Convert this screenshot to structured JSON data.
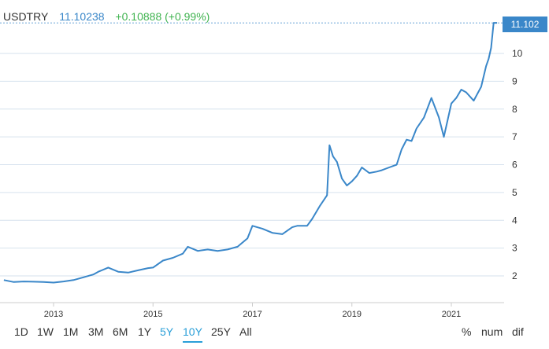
{
  "header": {
    "symbol": "USDTRY",
    "last": "11.10238",
    "change": "+0.10888 (+0.99%)"
  },
  "price_tag": "11.102",
  "range_buttons": {
    "left": [
      "1D",
      "1W",
      "1M",
      "3M",
      "6M",
      "1Y",
      "5Y",
      "10Y",
      "25Y",
      "All"
    ],
    "active": [
      "5Y",
      "10Y"
    ],
    "underlined": "10Y",
    "right": [
      "%",
      "num",
      "dif"
    ]
  },
  "colors": {
    "line": "#3a87c9",
    "change": "#3fb34f",
    "active": "#2a9fd8"
  },
  "chart_data": {
    "type": "line",
    "title": "",
    "xlabel": "",
    "ylabel": "",
    "ylim": [
      1.0,
      11.4
    ],
    "y_ticks": [
      "2",
      "3",
      "4",
      "5",
      "6",
      "7",
      "8",
      "9",
      "10"
    ],
    "x_ticks": [
      "2013",
      "2015",
      "2017",
      "2019",
      "2021"
    ],
    "grid": "horizontal",
    "series": [
      {
        "name": "",
        "x": [
          2012.0,
          2012.2,
          2012.4,
          2012.6,
          2012.8,
          2013.0,
          2013.2,
          2013.4,
          2013.6,
          2013.8,
          2013.9,
          2014.1,
          2014.3,
          2014.5,
          2014.7,
          2014.9,
          2015.0,
          2015.2,
          2015.4,
          2015.6,
          2015.7,
          2015.9,
          2016.1,
          2016.3,
          2016.5,
          2016.7,
          2016.9,
          2017.0,
          2017.2,
          2017.4,
          2017.6,
          2017.8,
          2017.9,
          2018.1,
          2018.2,
          2018.35,
          2018.5,
          2018.55,
          2018.62,
          2018.7,
          2018.8,
          2018.9,
          2019.0,
          2019.1,
          2019.2,
          2019.35,
          2019.5,
          2019.6,
          2019.75,
          2019.9,
          2020.0,
          2020.1,
          2020.2,
          2020.3,
          2020.45,
          2020.6,
          2020.75,
          2020.85,
          2020.9,
          2021.0,
          2021.1,
          2021.2,
          2021.3,
          2021.45,
          2021.6,
          2021.7,
          2021.75,
          2021.8,
          2021.85,
          2021.92
        ],
        "y": [
          1.85,
          1.78,
          1.8,
          1.79,
          1.78,
          1.76,
          1.8,
          1.85,
          1.95,
          2.05,
          2.15,
          2.3,
          2.15,
          2.12,
          2.2,
          2.28,
          2.3,
          2.55,
          2.65,
          2.8,
          3.05,
          2.9,
          2.95,
          2.9,
          2.95,
          3.05,
          3.35,
          3.8,
          3.7,
          3.55,
          3.5,
          3.75,
          3.8,
          3.8,
          4.05,
          4.5,
          4.9,
          6.7,
          6.3,
          6.1,
          5.5,
          5.25,
          5.4,
          5.6,
          5.9,
          5.7,
          5.75,
          5.8,
          5.9,
          6.0,
          6.55,
          6.9,
          6.85,
          7.3,
          7.7,
          8.4,
          7.7,
          7.0,
          7.4,
          8.2,
          8.4,
          8.7,
          8.6,
          8.3,
          8.8,
          9.55,
          9.8,
          10.2,
          11.1,
          11.1
        ]
      }
    ]
  }
}
